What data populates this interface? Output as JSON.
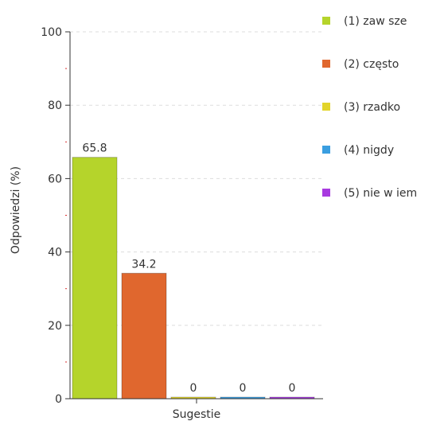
{
  "chart_data": {
    "type": "bar",
    "xlabel": "Sugestie",
    "ylabel": "Odpowiedzi (%)",
    "ylim": [
      0,
      100
    ],
    "yticks": [
      "0",
      "20",
      "40",
      "60",
      "80",
      "100"
    ],
    "grid": true,
    "legend_position": "right",
    "series": [
      {
        "name": "(1) zaw sze",
        "value": 65.8,
        "label": "65.8",
        "color": "#b5d42b"
      },
      {
        "name": "(2) często",
        "value": 34.2,
        "label": "34.2",
        "color": "#e0672e"
      },
      {
        "name": "(3) rzadko",
        "value": 0,
        "label": "0",
        "color": "#e2d42a"
      },
      {
        "name": "(4) nigdy",
        "value": 0,
        "label": "0",
        "color": "#3a9ee0"
      },
      {
        "name": "(5) nie w iem",
        "value": 0,
        "label": "0",
        "color": "#a83ae0"
      }
    ]
  }
}
